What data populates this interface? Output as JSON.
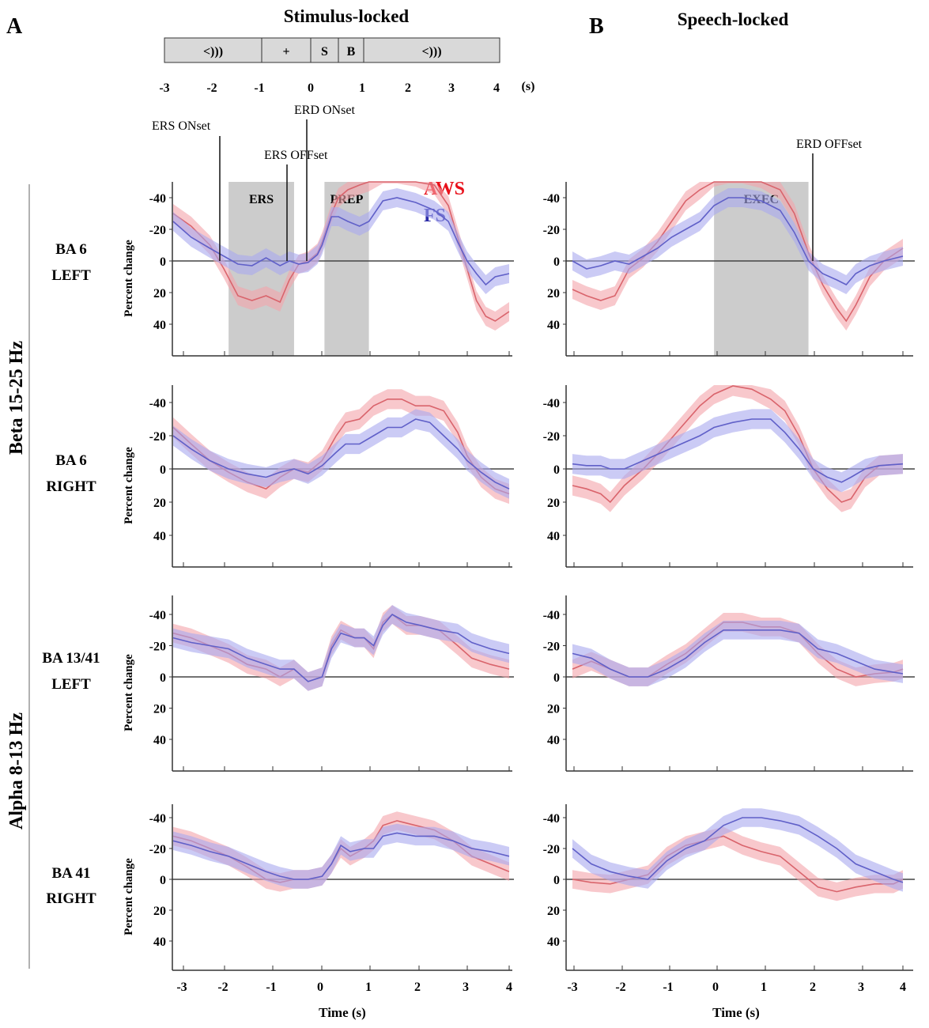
{
  "panel_labels": {
    "a": "A",
    "b": "B"
  },
  "panel_titles": {
    "stimulus": "Stimulus-locked",
    "speech": "Speech-locked"
  },
  "timeline": {
    "segments": [
      {
        "label": "<)))",
        "start": -3,
        "end": -1
      },
      {
        "label": "+",
        "start": -1,
        "end": 0
      },
      {
        "label": "S",
        "start": 0,
        "end": 0.6
      },
      {
        "label": "B",
        "start": 0.6,
        "end": 1
      },
      {
        "label": "<)))",
        "start": 1,
        "end": 4
      }
    ],
    "ticks": [
      "-3",
      "-2",
      "-1",
      "0",
      "1",
      "2",
      "3",
      "4"
    ],
    "unit": "(s)"
  },
  "event_markers": {
    "ers_onset": "ERS ONset",
    "ers_offset": "ERS OFFset",
    "erd_onset": "ERD ONset",
    "erd_offset": "ERD OFFset"
  },
  "shaded_windows": {
    "ers": "ERS",
    "prep": "PREP",
    "exec": "EXEC"
  },
  "legend": [
    {
      "label": "AWS",
      "color": "#e8101a"
    },
    {
      "label": "FS",
      "color": "#2a2aa8"
    }
  ],
  "band_labels": {
    "beta": "Beta 15-25 Hz",
    "alpha": "Alpha 8-13 Hz"
  },
  "row_labels": [
    {
      "line1": "BA 6",
      "line2": "LEFT"
    },
    {
      "line1": "BA 6",
      "line2": "RIGHT"
    },
    {
      "line1": "BA 13/41",
      "line2": "LEFT"
    },
    {
      "line1": "BA 41",
      "line2": "RIGHT"
    }
  ],
  "ylabel": "Percent change",
  "xlabel": "Time (s)",
  "colors": {
    "aws_line": "#d9646c",
    "aws_band": "#f4a4aa",
    "fs_line": "#6060c8",
    "fs_band": "#a8a8ee",
    "shade": "#cccccc"
  },
  "chart_data": [
    {
      "type": "line",
      "panel": "A",
      "row": "BA 6 LEFT",
      "ylim": [
        -60,
        50
      ],
      "yticks": [
        "40",
        "20",
        "0",
        "-20",
        "-40"
      ],
      "xlim": [
        -3.2,
        4
      ],
      "xticks": [
        "-3",
        "-2",
        "-1",
        "0",
        "1",
        "2",
        "3",
        "4"
      ],
      "shaded": [
        {
          "label": "ERS",
          "start": -2,
          "end": -0.6
        },
        {
          "label": "PREP",
          "start": 0.05,
          "end": 1
        }
      ],
      "series": [
        {
          "name": "AWS",
          "x": [
            -3.2,
            -2.8,
            -2.4,
            -2.1,
            -1.8,
            -1.5,
            -1.2,
            -0.9,
            -0.7,
            -0.5,
            -0.3,
            -0.1,
            0,
            0.2,
            0.35,
            0.55,
            0.8,
            1.0,
            1.3,
            1.6,
            2.0,
            2.4,
            2.7,
            2.9,
            3.1,
            3.3,
            3.5,
            3.7,
            4.0
          ],
          "values": [
            -30,
            -22,
            -10,
            5,
            22,
            25,
            22,
            26,
            12,
            2,
            0,
            -5,
            -12,
            -30,
            -40,
            -45,
            -48,
            -50,
            -55,
            -55,
            -53,
            -48,
            -35,
            -15,
            5,
            25,
            35,
            38,
            32
          ]
        },
        {
          "name": "FS",
          "x": [
            -3.2,
            -2.8,
            -2.4,
            -2.1,
            -1.8,
            -1.5,
            -1.2,
            -0.9,
            -0.7,
            -0.5,
            -0.3,
            -0.1,
            0,
            0.2,
            0.35,
            0.55,
            0.8,
            1.0,
            1.3,
            1.6,
            2.0,
            2.4,
            2.7,
            2.9,
            3.1,
            3.3,
            3.5,
            3.7,
            4.0
          ],
          "values": [
            -25,
            -15,
            -8,
            -3,
            2,
            3,
            -2,
            3,
            0,
            2,
            1,
            -4,
            -10,
            -28,
            -28,
            -25,
            -22,
            -25,
            -38,
            -40,
            -37,
            -32,
            -25,
            -12,
            0,
            8,
            15,
            10,
            8
          ]
        }
      ]
    },
    {
      "type": "line",
      "panel": "B",
      "row": "BA 6 LEFT",
      "ylim": [
        -60,
        50
      ],
      "yticks": [
        "40",
        "20",
        "0",
        "-20",
        "-40"
      ],
      "xlim": [
        -3,
        4
      ],
      "xticks": [
        "-3",
        "-2",
        "-1",
        "0",
        "1",
        "2",
        "3",
        "4"
      ],
      "shaded": [
        {
          "label": "EXEC",
          "start": 0,
          "end": 2
        }
      ],
      "series": [
        {
          "name": "AWS",
          "x": [
            -3,
            -2.7,
            -2.4,
            -2.1,
            -1.8,
            -1.5,
            -1.2,
            -0.9,
            -0.6,
            -0.3,
            0,
            0.3,
            0.6,
            1.0,
            1.4,
            1.7,
            2.0,
            2.3,
            2.6,
            2.8,
            3.0,
            3.3,
            3.6,
            4.0
          ],
          "values": [
            18,
            22,
            25,
            22,
            5,
            -2,
            -12,
            -25,
            -38,
            -45,
            -53,
            -55,
            -55,
            -52,
            -45,
            -30,
            -5,
            15,
            30,
            38,
            28,
            10,
            0,
            -8
          ]
        },
        {
          "name": "FS",
          "x": [
            -3,
            -2.7,
            -2.4,
            -2.1,
            -1.8,
            -1.5,
            -1.2,
            -0.9,
            -0.6,
            -0.3,
            0,
            0.3,
            0.6,
            1.0,
            1.4,
            1.7,
            2.0,
            2.3,
            2.6,
            2.8,
            3.0,
            3.3,
            3.6,
            4.0
          ],
          "values": [
            0,
            5,
            3,
            0,
            2,
            -3,
            -8,
            -15,
            -20,
            -25,
            -35,
            -40,
            -40,
            -38,
            -32,
            -18,
            0,
            8,
            12,
            15,
            8,
            3,
            0,
            -3
          ]
        }
      ]
    },
    {
      "type": "line",
      "panel": "A",
      "row": "BA 6 RIGHT",
      "ylim": [
        -60,
        50
      ],
      "yticks": [
        "40",
        "20",
        "0",
        "-20",
        "-40"
      ],
      "xlim": [
        -3.2,
        4
      ],
      "xticks": [
        "-3",
        "-2",
        "-1",
        "0",
        "1",
        "2",
        "3",
        "4"
      ],
      "series": [
        {
          "name": "AWS",
          "x": [
            -3.2,
            -2.8,
            -2.4,
            -2.0,
            -1.6,
            -1.2,
            -0.9,
            -0.6,
            -0.3,
            0,
            0.3,
            0.5,
            0.8,
            1.1,
            1.4,
            1.7,
            2.0,
            2.3,
            2.6,
            2.9,
            3.1,
            3.4,
            3.7,
            4.0
          ],
          "values": [
            -25,
            -15,
            -5,
            2,
            8,
            12,
            5,
            0,
            2,
            -5,
            -20,
            -28,
            -30,
            -38,
            -42,
            -42,
            -38,
            -38,
            -35,
            -22,
            -8,
            5,
            12,
            15
          ]
        },
        {
          "name": "FS",
          "x": [
            -3.2,
            -2.8,
            -2.4,
            -2.0,
            -1.6,
            -1.2,
            -0.9,
            -0.6,
            -0.3,
            0,
            0.3,
            0.5,
            0.8,
            1.1,
            1.4,
            1.7,
            2.0,
            2.3,
            2.6,
            2.9,
            3.1,
            3.4,
            3.7,
            4.0
          ],
          "values": [
            -20,
            -12,
            -5,
            0,
            3,
            5,
            2,
            0,
            3,
            -2,
            -10,
            -15,
            -15,
            -20,
            -25,
            -25,
            -30,
            -28,
            -20,
            -12,
            -5,
            2,
            8,
            12
          ]
        }
      ]
    },
    {
      "type": "line",
      "panel": "B",
      "row": "BA 6 RIGHT",
      "ylim": [
        -60,
        50
      ],
      "yticks": [
        "40",
        "20",
        "0",
        "-20",
        "-40"
      ],
      "xlim": [
        -3,
        4
      ],
      "xticks": [
        "-3",
        "-2",
        "-1",
        "0",
        "1",
        "2",
        "3",
        "4"
      ],
      "series": [
        {
          "name": "AWS",
          "x": [
            -3,
            -2.7,
            -2.4,
            -2.2,
            -1.9,
            -1.5,
            -1.1,
            -0.7,
            -0.3,
            0,
            0.4,
            0.8,
            1.2,
            1.5,
            1.8,
            2.1,
            2.4,
            2.7,
            2.9,
            3.2,
            3.5,
            4.0
          ],
          "values": [
            10,
            12,
            15,
            20,
            10,
            0,
            -12,
            -25,
            -38,
            -45,
            -50,
            -48,
            -42,
            -35,
            -20,
            0,
            12,
            20,
            18,
            5,
            -2,
            -3
          ]
        },
        {
          "name": "FS",
          "x": [
            -3,
            -2.7,
            -2.4,
            -2.2,
            -1.9,
            -1.5,
            -1.1,
            -0.7,
            -0.3,
            0,
            0.4,
            0.8,
            1.2,
            1.5,
            1.8,
            2.1,
            2.4,
            2.7,
            2.9,
            3.2,
            3.5,
            4.0
          ],
          "values": [
            -3,
            -2,
            -2,
            0,
            0,
            -5,
            -10,
            -15,
            -20,
            -25,
            -28,
            -30,
            -30,
            -22,
            -12,
            0,
            5,
            8,
            5,
            0,
            -2,
            -3
          ]
        }
      ]
    },
    {
      "type": "line",
      "panel": "A",
      "row": "BA 13/41 LEFT",
      "ylim": [
        -60,
        50
      ],
      "yticks": [
        "40",
        "20",
        "0",
        "-20",
        "-40"
      ],
      "xlim": [
        -3.2,
        4
      ],
      "xticks": [
        "-3",
        "-2",
        "-1",
        "0",
        "1",
        "2",
        "3",
        "4"
      ],
      "series": [
        {
          "name": "AWS",
          "x": [
            -3.2,
            -2.8,
            -2.4,
            -2.0,
            -1.6,
            -1.2,
            -0.9,
            -0.6,
            -0.3,
            0,
            0.2,
            0.4,
            0.7,
            0.9,
            1.1,
            1.3,
            1.5,
            1.8,
            2.1,
            2.5,
            2.9,
            3.2,
            3.6,
            4.0
          ],
          "values": [
            -28,
            -25,
            -20,
            -15,
            -8,
            -5,
            0,
            -5,
            3,
            0,
            -20,
            -30,
            -25,
            -25,
            -18,
            -35,
            -40,
            -33,
            -33,
            -30,
            -20,
            -12,
            -8,
            -5
          ]
        },
        {
          "name": "FS",
          "x": [
            -3.2,
            -2.8,
            -2.4,
            -2.0,
            -1.6,
            -1.2,
            -0.9,
            -0.6,
            -0.3,
            0,
            0.2,
            0.4,
            0.7,
            0.9,
            1.1,
            1.3,
            1.5,
            1.8,
            2.1,
            2.5,
            2.9,
            3.2,
            3.6,
            4.0
          ],
          "values": [
            -25,
            -22,
            -20,
            -18,
            -12,
            -8,
            -5,
            -5,
            3,
            0,
            -18,
            -28,
            -25,
            -25,
            -20,
            -33,
            -40,
            -35,
            -33,
            -30,
            -28,
            -22,
            -18,
            -15
          ]
        }
      ]
    },
    {
      "type": "line",
      "panel": "B",
      "row": "BA 13/41 LEFT",
      "ylim": [
        -60,
        50
      ],
      "yticks": [
        "40",
        "20",
        "0",
        "-20",
        "-40"
      ],
      "xlim": [
        -3,
        4
      ],
      "xticks": [
        "-3",
        "-2",
        "-1",
        "0",
        "1",
        "2",
        "3",
        "4"
      ],
      "series": [
        {
          "name": "AWS",
          "x": [
            -3,
            -2.6,
            -2.2,
            -1.8,
            -1.4,
            -1.0,
            -0.6,
            -0.2,
            0.2,
            0.6,
            1.0,
            1.4,
            1.8,
            2.2,
            2.6,
            3.0,
            3.4,
            3.8,
            4.0
          ],
          "values": [
            -5,
            -10,
            -5,
            0,
            0,
            -8,
            -15,
            -25,
            -35,
            -35,
            -32,
            -32,
            -28,
            -15,
            -5,
            0,
            -2,
            -3,
            -5
          ]
        },
        {
          "name": "FS",
          "x": [
            -3,
            -2.6,
            -2.2,
            -1.8,
            -1.4,
            -1.0,
            -0.6,
            -0.2,
            0.2,
            0.6,
            1.0,
            1.4,
            1.8,
            2.2,
            2.6,
            3.0,
            3.4,
            3.8,
            4.0
          ],
          "values": [
            -15,
            -12,
            -5,
            0,
            0,
            -5,
            -12,
            -22,
            -30,
            -30,
            -30,
            -30,
            -28,
            -18,
            -15,
            -10,
            -5,
            -3,
            -2
          ]
        }
      ]
    },
    {
      "type": "line",
      "panel": "A",
      "row": "BA 41 RIGHT",
      "ylim": [
        -60,
        50
      ],
      "yticks": [
        "40",
        "20",
        "0",
        "-20",
        "-40"
      ],
      "xlim": [
        -3.2,
        4
      ],
      "xticks": [
        "-3",
        "-2",
        "-1",
        "0",
        "1",
        "2",
        "3",
        "4"
      ],
      "series": [
        {
          "name": "AWS",
          "x": [
            -3.2,
            -2.8,
            -2.4,
            -2.0,
            -1.6,
            -1.2,
            -0.9,
            -0.6,
            -0.3,
            0,
            0.2,
            0.4,
            0.6,
            0.9,
            1.1,
            1.3,
            1.6,
            2.0,
            2.4,
            2.8,
            3.2,
            3.6,
            4.0
          ],
          "values": [
            -28,
            -25,
            -20,
            -15,
            -8,
            0,
            2,
            0,
            0,
            -2,
            -10,
            -20,
            -15,
            -20,
            -25,
            -35,
            -38,
            -35,
            -32,
            -25,
            -15,
            -10,
            -5
          ]
        },
        {
          "name": "FS",
          "x": [
            -3.2,
            -2.8,
            -2.4,
            -2.0,
            -1.6,
            -1.2,
            -0.9,
            -0.6,
            -0.3,
            0,
            0.2,
            0.4,
            0.6,
            0.9,
            1.1,
            1.3,
            1.6,
            2.0,
            2.4,
            2.8,
            3.2,
            3.6,
            4.0
          ],
          "values": [
            -25,
            -22,
            -18,
            -15,
            -10,
            -5,
            -2,
            0,
            0,
            -2,
            -10,
            -22,
            -18,
            -20,
            -20,
            -28,
            -30,
            -28,
            -28,
            -25,
            -20,
            -18,
            -15
          ]
        }
      ]
    },
    {
      "type": "line",
      "panel": "B",
      "row": "BA 41 RIGHT",
      "ylim": [
        -60,
        50
      ],
      "yticks": [
        "40",
        "20",
        "0",
        "-20",
        "-40"
      ],
      "xlim": [
        -3,
        4
      ],
      "xticks": [
        "-3",
        "-2",
        "-1",
        "0",
        "1",
        "2",
        "3",
        "4"
      ],
      "series": [
        {
          "name": "AWS",
          "x": [
            -3,
            -2.6,
            -2.2,
            -1.8,
            -1.4,
            -1.0,
            -0.6,
            -0.2,
            0.2,
            0.6,
            1.0,
            1.4,
            1.8,
            2.2,
            2.6,
            3.0,
            3.4,
            3.8,
            4.0
          ],
          "values": [
            0,
            2,
            3,
            0,
            -3,
            -15,
            -22,
            -25,
            -28,
            -22,
            -18,
            -15,
            -5,
            5,
            8,
            5,
            3,
            3,
            0
          ]
        },
        {
          "name": "FS",
          "x": [
            -3,
            -2.6,
            -2.2,
            -1.8,
            -1.4,
            -1.0,
            -0.6,
            -0.2,
            0.2,
            0.6,
            1.0,
            1.4,
            1.8,
            2.2,
            2.6,
            3.0,
            3.4,
            3.8,
            4.0
          ],
          "values": [
            -20,
            -10,
            -5,
            -2,
            0,
            -12,
            -20,
            -25,
            -35,
            -40,
            -40,
            -38,
            -35,
            -28,
            -20,
            -10,
            -5,
            0,
            2
          ]
        }
      ]
    }
  ]
}
